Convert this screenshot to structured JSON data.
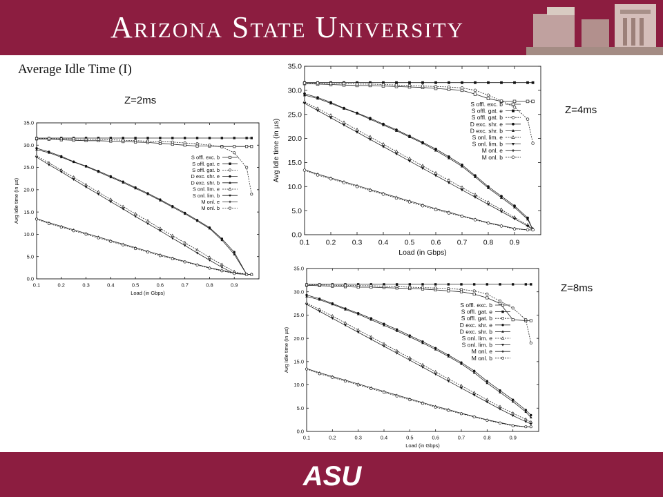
{
  "header": {
    "title": "Arizona State University",
    "building_icon": "campus-building-photo",
    "band_color": "#8c1d40"
  },
  "footer": {
    "logo_text": "ASU",
    "band_color": "#8c1d40"
  },
  "slide": {
    "title": "Average Idle Time (I)",
    "z_labels": [
      "Z=2ms",
      "Z=4ms",
      "Z=8ms"
    ]
  },
  "chart_data": [
    {
      "type": "line",
      "xlabel": "Load (in Gbps)",
      "ylabel": "Avg Idle time (in µs)",
      "xlim": [
        0.1,
        1.0
      ],
      "ylim": [
        0,
        35
      ],
      "xticks": [
        "0.1",
        "0.2",
        "0.3",
        "0.4",
        "0.5",
        "0.6",
        "0.7",
        "0.8",
        "0.9"
      ],
      "yticks": [
        "0.0",
        "5.0",
        "10.0",
        "15.0",
        "20.0",
        "25.0",
        "30.0",
        "35.0"
      ],
      "grid": false,
      "legend_position": "top-right",
      "x": [
        0.1,
        0.15,
        0.2,
        0.25,
        0.3,
        0.35,
        0.4,
        0.45,
        0.5,
        0.55,
        0.6,
        0.65,
        0.7,
        0.75,
        0.8,
        0.85,
        0.9,
        0.95,
        0.97
      ],
      "series": [
        {
          "name": "S offl. exc. b",
          "marker": "square-open",
          "values": [
            31.4,
            31.3,
            31.2,
            31.1,
            31.0,
            31.0,
            30.9,
            30.8,
            30.7,
            30.6,
            30.4,
            30.2,
            30.0,
            29.8,
            29.8,
            29.7,
            29.7,
            29.7,
            29.7
          ]
        },
        {
          "name": "S offl. gat. e",
          "marker": "square-filled",
          "values": [
            31.6,
            31.6,
            31.6,
            31.6,
            31.6,
            31.6,
            31.6,
            31.6,
            31.6,
            31.6,
            31.6,
            31.6,
            31.6,
            31.6,
            31.6,
            31.6,
            31.6,
            31.6,
            31.6
          ]
        },
        {
          "name": "S offl. gat. b",
          "marker": "circle-open",
          "values": [
            31.5,
            31.5,
            31.4,
            31.4,
            31.3,
            31.3,
            31.2,
            31.1,
            31.0,
            30.9,
            30.8,
            30.7,
            30.5,
            30.3,
            30.0,
            29.6,
            28.3,
            25.0,
            19.0
          ]
        },
        {
          "name": "D exc. shr. e",
          "marker": "circle-filled",
          "values": [
            29.3,
            28.5,
            27.5,
            26.3,
            25.3,
            24.2,
            23.0,
            21.8,
            20.5,
            19.2,
            17.8,
            16.3,
            14.8,
            13.2,
            11.5,
            9.0,
            6.0,
            1.0,
            1.0
          ]
        },
        {
          "name": "D exc. shr. b",
          "marker": "triangle-filled",
          "values": [
            29.0,
            28.3,
            27.3,
            26.2,
            25.2,
            24.0,
            22.8,
            21.6,
            20.3,
            19.0,
            17.6,
            16.1,
            14.6,
            13.0,
            11.3,
            8.7,
            5.5,
            1.0,
            1.0
          ]
        },
        {
          "name": "S onl. lim. e",
          "marker": "triangle-open",
          "values": [
            27.6,
            26.0,
            24.4,
            22.8,
            21.1,
            19.5,
            17.8,
            16.2,
            14.6,
            13.0,
            11.3,
            9.7,
            8.1,
            6.5,
            4.8,
            3.2,
            1.6,
            1.0,
            1.0
          ]
        },
        {
          "name": "S onl. lim. b",
          "marker": "triangle-down-filled",
          "values": [
            27.3,
            25.6,
            24.0,
            22.3,
            20.6,
            19.0,
            17.3,
            15.7,
            14.0,
            12.4,
            10.8,
            9.1,
            7.5,
            5.8,
            4.2,
            2.6,
            1.2,
            1.0,
            1.0
          ]
        },
        {
          "name": "M onl. e",
          "marker": "plus",
          "values": [
            13.5,
            12.6,
            11.8,
            11.0,
            10.2,
            9.4,
            8.6,
            7.8,
            7.0,
            6.2,
            5.4,
            4.7,
            3.9,
            3.2,
            2.5,
            1.9,
            1.3,
            1.0,
            1.0
          ]
        },
        {
          "name": "M onl. b",
          "marker": "circle-open",
          "values": [
            13.4,
            12.4,
            11.6,
            10.8,
            10.0,
            9.2,
            8.4,
            7.6,
            6.8,
            6.0,
            5.2,
            4.5,
            3.8,
            3.1,
            2.4,
            1.8,
            1.2,
            1.0,
            1.0
          ]
        }
      ]
    },
    {
      "type": "line",
      "xlabel": "Load (in Gbps)",
      "ylabel": "Avg Idle time (in µs)",
      "xlim": [
        0.1,
        1.0
      ],
      "ylim": [
        0,
        35
      ],
      "xticks": [
        "0.1",
        "0.2",
        "0.3",
        "0.4",
        "0.5",
        "0.6",
        "0.7",
        "0.8",
        "0.9"
      ],
      "yticks": [
        "0.0",
        "5.0",
        "10.0",
        "15.0",
        "20.0",
        "25.0",
        "30.0",
        "35.0"
      ],
      "grid": false,
      "legend_position": "top-right",
      "x": [
        0.1,
        0.15,
        0.2,
        0.25,
        0.3,
        0.35,
        0.4,
        0.45,
        0.5,
        0.55,
        0.6,
        0.65,
        0.7,
        0.75,
        0.8,
        0.85,
        0.9,
        0.95,
        0.97
      ],
      "series": [
        {
          "name": "S offl. exc. b",
          "marker": "square-open",
          "values": [
            31.4,
            31.3,
            31.2,
            31.1,
            31.0,
            31.0,
            30.9,
            30.8,
            30.7,
            30.6,
            30.4,
            30.2,
            30.0,
            29.2,
            28.3,
            27.7,
            27.7,
            27.7,
            27.7
          ]
        },
        {
          "name": "S offl. gat. e",
          "marker": "square-filled",
          "values": [
            31.6,
            31.6,
            31.6,
            31.6,
            31.6,
            31.6,
            31.6,
            31.6,
            31.6,
            31.6,
            31.6,
            31.6,
            31.6,
            31.6,
            31.6,
            31.6,
            31.6,
            31.6,
            31.6
          ]
        },
        {
          "name": "S offl. gat. b",
          "marker": "circle-open",
          "values": [
            31.5,
            31.5,
            31.4,
            31.4,
            31.3,
            31.3,
            31.2,
            31.1,
            31.0,
            30.9,
            30.8,
            30.7,
            30.5,
            30.0,
            29.0,
            27.8,
            26.5,
            24.0,
            19.0
          ]
        },
        {
          "name": "D exc. shr. e",
          "marker": "circle-filled",
          "values": [
            29.3,
            28.5,
            27.5,
            26.3,
            25.3,
            24.2,
            23.0,
            21.8,
            20.5,
            19.2,
            17.8,
            16.2,
            14.5,
            12.3,
            10.0,
            8.0,
            6.0,
            3.5,
            1.0
          ]
        },
        {
          "name": "D exc. shr. b",
          "marker": "triangle-filled",
          "values": [
            29.0,
            28.3,
            27.3,
            26.2,
            25.2,
            24.0,
            22.8,
            21.6,
            20.3,
            19.0,
            17.5,
            15.9,
            14.2,
            12.0,
            9.7,
            7.7,
            5.7,
            3.2,
            1.0
          ]
        },
        {
          "name": "S onl. lim. e",
          "marker": "triangle-open",
          "values": [
            27.6,
            26.2,
            24.8,
            23.3,
            21.8,
            20.3,
            18.8,
            17.3,
            15.8,
            14.3,
            12.8,
            11.3,
            9.8,
            8.3,
            6.7,
            5.2,
            3.6,
            2.0,
            1.2
          ]
        },
        {
          "name": "S onl. lim. b",
          "marker": "triangle-down-filled",
          "values": [
            27.3,
            25.8,
            24.3,
            22.8,
            21.3,
            19.8,
            18.3,
            16.8,
            15.3,
            13.8,
            12.3,
            10.8,
            9.3,
            7.8,
            6.3,
            4.8,
            3.3,
            1.8,
            1.0
          ]
        },
        {
          "name": "M onl. e",
          "marker": "plus",
          "values": [
            13.5,
            12.6,
            11.8,
            11.0,
            10.2,
            9.4,
            8.6,
            7.8,
            7.0,
            6.2,
            5.4,
            4.7,
            3.9,
            3.2,
            2.5,
            1.9,
            1.3,
            1.0,
            1.0
          ]
        },
        {
          "name": "M onl. b",
          "marker": "circle-open",
          "values": [
            13.4,
            12.4,
            11.6,
            10.8,
            10.0,
            9.2,
            8.4,
            7.6,
            6.8,
            6.0,
            5.2,
            4.5,
            3.8,
            3.1,
            2.4,
            1.8,
            1.2,
            1.0,
            1.0
          ]
        }
      ]
    },
    {
      "type": "line",
      "xlabel": "Load (in Gbps)",
      "ylabel": "Avg Idle time (in µs)",
      "xlim": [
        0.1,
        1.0
      ],
      "ylim": [
        0,
        35
      ],
      "xticks": [
        "0.1",
        "0.2",
        "0.3",
        "0.4",
        "0.5",
        "0.6",
        "0.7",
        "0.8",
        "0.9"
      ],
      "yticks": [
        "0.0",
        "5.0",
        "10.0",
        "15.0",
        "20.0",
        "25.0",
        "30.0",
        "35.0"
      ],
      "grid": false,
      "legend_position": "top-right",
      "x": [
        0.1,
        0.15,
        0.2,
        0.25,
        0.3,
        0.35,
        0.4,
        0.45,
        0.5,
        0.55,
        0.6,
        0.65,
        0.7,
        0.75,
        0.8,
        0.85,
        0.9,
        0.95,
        0.97
      ],
      "series": [
        {
          "name": "S offl. exc. b",
          "marker": "square-open",
          "values": [
            31.4,
            31.3,
            31.2,
            31.1,
            31.0,
            31.0,
            30.9,
            30.8,
            30.7,
            30.6,
            30.4,
            30.2,
            30.0,
            29.5,
            28.7,
            27.5,
            24.0,
            23.8,
            23.8
          ]
        },
        {
          "name": "S offl. gat. e",
          "marker": "square-filled",
          "values": [
            31.6,
            31.6,
            31.6,
            31.6,
            31.6,
            31.6,
            31.6,
            31.6,
            31.6,
            31.6,
            31.6,
            31.6,
            31.6,
            31.6,
            31.6,
            31.6,
            31.6,
            31.6,
            31.6
          ]
        },
        {
          "name": "S offl. gat. b",
          "marker": "circle-open",
          "values": [
            31.5,
            31.5,
            31.4,
            31.4,
            31.3,
            31.3,
            31.2,
            31.1,
            31.0,
            30.9,
            30.8,
            30.7,
            30.5,
            30.2,
            29.5,
            28.0,
            26.5,
            24.0,
            19.0
          ]
        },
        {
          "name": "D exc. shr. e",
          "marker": "circle-filled",
          "values": [
            29.3,
            28.5,
            27.5,
            26.4,
            25.4,
            24.3,
            23.1,
            21.9,
            20.6,
            19.3,
            17.9,
            16.4,
            14.8,
            13.0,
            10.8,
            8.8,
            6.8,
            4.6,
            3.5
          ]
        },
        {
          "name": "D exc. shr. b",
          "marker": "triangle-filled",
          "values": [
            29.0,
            28.3,
            27.3,
            26.2,
            25.2,
            24.0,
            22.8,
            21.6,
            20.3,
            19.0,
            17.6,
            16.1,
            14.5,
            12.6,
            10.4,
            8.4,
            6.4,
            4.2,
            3.0
          ]
        },
        {
          "name": "S onl. lim. e",
          "marker": "triangle-open",
          "values": [
            27.6,
            26.2,
            24.8,
            23.3,
            21.8,
            20.3,
            18.8,
            17.3,
            15.8,
            14.3,
            12.8,
            11.3,
            9.8,
            8.3,
            6.8,
            5.3,
            3.9,
            2.6,
            2.0
          ]
        },
        {
          "name": "S onl. lim. b",
          "marker": "triangle-down-filled",
          "values": [
            27.3,
            25.8,
            24.3,
            22.8,
            21.3,
            19.8,
            18.3,
            16.8,
            15.3,
            13.8,
            12.3,
            10.8,
            9.3,
            7.8,
            6.3,
            4.8,
            3.4,
            2.1,
            1.6
          ]
        },
        {
          "name": "M onl. e",
          "marker": "plus",
          "values": [
            13.5,
            12.6,
            11.8,
            11.0,
            10.2,
            9.4,
            8.6,
            7.8,
            7.0,
            6.2,
            5.4,
            4.7,
            3.9,
            3.2,
            2.5,
            1.9,
            1.3,
            1.0,
            1.0
          ]
        },
        {
          "name": "M onl. b",
          "marker": "circle-open",
          "values": [
            13.4,
            12.4,
            11.6,
            10.8,
            10.0,
            9.2,
            8.4,
            7.6,
            6.8,
            6.0,
            5.2,
            4.5,
            3.8,
            3.1,
            2.4,
            1.8,
            1.2,
            1.0,
            1.0
          ]
        }
      ]
    }
  ]
}
